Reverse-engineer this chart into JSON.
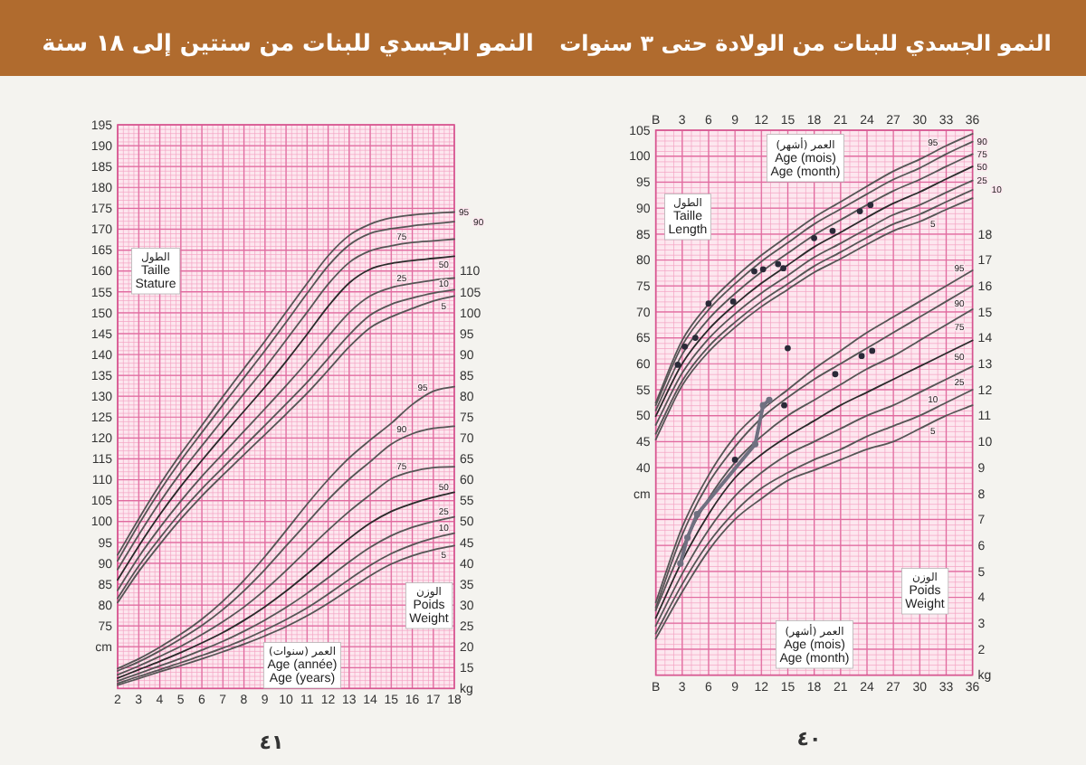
{
  "chart_data": [
    {
      "type": "line",
      "title": "النمو الجسدي للبنات من سنتين إلى ١٨ سنة",
      "xlabel": "العمر (سنوات)\nAge (année)\nAge (years)",
      "ylabel": "الطول\nTaille\nStature",
      "y2label": "الوزن\nPoids\nWeight",
      "x": [
        2,
        3,
        4,
        5,
        6,
        7,
        8,
        9,
        10,
        11,
        12,
        13,
        14,
        15,
        16,
        17,
        18
      ],
      "xlim": [
        2,
        18
      ],
      "xticks": [
        2,
        3,
        4,
        5,
        6,
        7,
        8,
        9,
        10,
        11,
        12,
        13,
        14,
        15,
        16,
        17,
        18
      ],
      "ylim": [
        60,
        195
      ],
      "yticks": [
        {
          "value": 70,
          "label": "cm"
        },
        75,
        80,
        85,
        90,
        95,
        100,
        105,
        110,
        115,
        120,
        125,
        130,
        135,
        140,
        145,
        150,
        155,
        160,
        165,
        170,
        175,
        180,
        185,
        190,
        195
      ],
      "y2lim": [
        10,
        145
      ],
      "y2ticks": [
        {
          "value": 10,
          "label": "kg"
        },
        15,
        20,
        25,
        30,
        35,
        40,
        45,
        50,
        55,
        60,
        65,
        70,
        75,
        80,
        85,
        90,
        95,
        100,
        105,
        110
      ],
      "grid": true,
      "series": [
        {
          "name": "95",
          "color": "#555555",
          "values": [
            92.0,
            100.6,
            108.8,
            116.2,
            123.0,
            129.9,
            136.6,
            143.2,
            150.1,
            157.0,
            163.6,
            168.5,
            171.2,
            172.7,
            173.4,
            173.8,
            174.1
          ]
        },
        {
          "name": "90",
          "color": "#555555",
          "values": [
            90.6,
            99.3,
            107.3,
            114.6,
            121.3,
            127.9,
            134.4,
            140.9,
            147.7,
            154.6,
            161.2,
            166.2,
            169.0,
            170.1,
            170.8,
            171.3,
            171.8
          ]
        },
        {
          "name": "75",
          "color": "#555555",
          "values": [
            88.5,
            96.8,
            104.6,
            111.7,
            118.1,
            124.4,
            130.6,
            136.8,
            143.4,
            150.1,
            156.8,
            162.0,
            164.8,
            166.0,
            166.8,
            167.2,
            167.6
          ]
        },
        {
          "name": "50",
          "color": "#2a2a2a",
          "values": [
            86.0,
            94.1,
            101.6,
            108.4,
            114.6,
            120.6,
            126.4,
            132.2,
            138.3,
            144.8,
            151.5,
            157.1,
            160.4,
            161.8,
            162.5,
            163.0,
            163.5
          ]
        },
        {
          "name": "25",
          "color": "#555555",
          "values": [
            83.5,
            91.5,
            98.5,
            104.9,
            110.8,
            116.2,
            121.6,
            127.0,
            132.5,
            138.2,
            144.3,
            150.0,
            154.0,
            156.0,
            157.0,
            157.8,
            158.3
          ]
        },
        {
          "name": "10",
          "color": "#555555",
          "values": [
            81.6,
            89.3,
            96.0,
            102.2,
            107.8,
            112.9,
            118.0,
            123.0,
            128.1,
            133.3,
            139.0,
            144.7,
            149.4,
            152.0,
            153.5,
            154.7,
            155.5
          ]
        },
        {
          "name": "5",
          "color": "#555555",
          "values": [
            80.6,
            88.0,
            94.5,
            100.6,
            106.1,
            111.1,
            116.0,
            120.8,
            125.7,
            130.7,
            136.2,
            141.8,
            146.4,
            149.0,
            151.0,
            152.8,
            154.0
          ]
        },
        {
          "name": "95",
          "axis": "y2",
          "color": "#555555",
          "values": [
            14.8,
            17.1,
            19.9,
            23.0,
            26.6,
            30.9,
            35.9,
            41.6,
            47.8,
            54.1,
            60.0,
            65.2,
            69.5,
            73.5,
            78.0,
            81.2,
            82.3
          ]
        },
        {
          "name": "90",
          "axis": "y2",
          "color": "#555555",
          "values": [
            14.2,
            16.4,
            19.0,
            21.9,
            25.1,
            28.9,
            33.4,
            38.5,
            44.1,
            49.7,
            55.2,
            60.1,
            64.3,
            68.5,
            71.0,
            72.3,
            72.8
          ]
        },
        {
          "name": "75",
          "axis": "y2",
          "color": "#555555",
          "values": [
            13.3,
            15.4,
            17.7,
            20.1,
            22.9,
            26.0,
            29.5,
            33.6,
            38.2,
            43.1,
            47.9,
            52.4,
            56.4,
            60.2,
            62.0,
            62.9,
            63.1
          ]
        },
        {
          "name": "50",
          "axis": "y2",
          "color": "#2a2a2a",
          "values": [
            12.5,
            14.5,
            16.5,
            18.6,
            20.9,
            23.4,
            26.3,
            29.6,
            33.3,
            37.4,
            41.7,
            45.9,
            49.6,
            52.4,
            54.3,
            55.8,
            57.0
          ]
        },
        {
          "name": "25",
          "axis": "y2",
          "color": "#555555",
          "values": [
            11.8,
            13.6,
            15.4,
            17.2,
            19.2,
            21.3,
            23.7,
            26.4,
            29.4,
            32.8,
            36.5,
            40.3,
            43.8,
            46.6,
            48.6,
            50.0,
            51.1
          ]
        },
        {
          "name": "10",
          "axis": "y2",
          "color": "#555555",
          "values": [
            11.2,
            12.9,
            14.5,
            16.2,
            17.9,
            19.7,
            21.7,
            24.0,
            26.5,
            29.3,
            32.6,
            36.1,
            39.5,
            42.3,
            44.4,
            46.0,
            47.2
          ]
        },
        {
          "name": "5",
          "axis": "y2",
          "color": "#555555",
          "values": [
            10.8,
            12.4,
            14.0,
            15.5,
            17.1,
            18.8,
            20.6,
            22.6,
            24.8,
            27.4,
            30.4,
            33.7,
            37.0,
            39.8,
            41.8,
            43.2,
            44.2
          ]
        }
      ],
      "annotations": [
        "٤١"
      ]
    },
    {
      "type": "line",
      "title": "النمو الجسدي للبنات من الولادة حتى ٣ سنوات",
      "xlabel": "العمر (أشهر)\nAge (mois)\nAge (month)",
      "x2label": "العمر (أشهر)\nAge (mois)\nAge (month)",
      "ylabel": "الطول\nTaille\nLength",
      "y2label": "الوزن\nPoids\nWeight",
      "x": [
        0,
        3,
        6,
        9,
        12,
        15,
        18,
        21,
        24,
        27,
        30,
        33,
        36
      ],
      "xlim": [
        0,
        36
      ],
      "xticks": [
        {
          "value": 0,
          "label": "B"
        },
        3,
        6,
        9,
        12,
        15,
        18,
        21,
        24,
        27,
        30,
        33,
        36
      ],
      "x2lim": [
        0,
        36
      ],
      "x2ticks": [
        {
          "value": 0,
          "label": "B"
        },
        3,
        6,
        9,
        12,
        15,
        18,
        21,
        24,
        27,
        30,
        33,
        36
      ],
      "ylim": [
        0,
        105
      ],
      "yticks": [
        {
          "value": 35,
          "label": "cm"
        },
        40,
        45,
        50,
        55,
        60,
        65,
        70,
        75,
        80,
        85,
        90,
        95,
        100,
        105
      ],
      "y2lim": [
        1,
        22
      ],
      "y2ticks": [
        {
          "value": 1,
          "label": "kg"
        },
        2,
        3,
        4,
        5,
        6,
        7,
        8,
        9,
        10,
        11,
        12,
        13,
        14,
        15,
        16,
        17,
        18
      ],
      "grid": true,
      "series": [
        {
          "name": "95",
          "color": "#555555",
          "values": [
            52.5,
            64.5,
            71.5,
            76.6,
            80.9,
            84.6,
            88.2,
            91.2,
            94.2,
            97.1,
            99.4,
            102.0,
            104.3
          ]
        },
        {
          "name": "90",
          "color": "#555555",
          "values": [
            52.0,
            63.5,
            70.4,
            75.4,
            79.7,
            83.3,
            86.9,
            89.8,
            92.7,
            95.5,
            97.7,
            100.4,
            102.8
          ]
        },
        {
          "name": "75",
          "color": "#555555",
          "values": [
            51.0,
            61.8,
            68.6,
            73.5,
            77.7,
            81.3,
            84.8,
            87.7,
            90.6,
            93.3,
            95.5,
            98.0,
            100.4
          ]
        },
        {
          "name": "50",
          "color": "#2a2a2a",
          "values": [
            49.9,
            60.0,
            66.6,
            71.4,
            75.5,
            79.0,
            82.5,
            85.3,
            88.2,
            90.9,
            93.1,
            95.6,
            98.0
          ]
        },
        {
          "name": "25",
          "color": "#555555",
          "values": [
            48.2,
            58.2,
            64.8,
            69.6,
            73.6,
            77.0,
            80.5,
            83.2,
            86.0,
            88.7,
            90.6,
            93.0,
            95.3
          ]
        },
        {
          "name": "10",
          "color": "#555555",
          "values": [
            46.5,
            56.7,
            63.3,
            68.0,
            72.0,
            75.4,
            78.8,
            81.5,
            84.3,
            86.9,
            88.8,
            91.2,
            93.5
          ]
        },
        {
          "name": "5",
          "color": "#555555",
          "values": [
            45.4,
            55.8,
            62.3,
            67.0,
            71.0,
            74.3,
            77.6,
            80.2,
            83.0,
            85.6,
            87.4,
            89.7,
            91.9
          ]
        },
        {
          "name": "95",
          "axis": "y2",
          "color": "#555555",
          "values": [
            3.8,
            6.7,
            8.7,
            10.2,
            11.2,
            12.0,
            12.8,
            13.5,
            14.2,
            14.8,
            15.4,
            16.0,
            16.6
          ]
        },
        {
          "name": "90",
          "axis": "y2",
          "color": "#555555",
          "values": [
            3.6,
            6.4,
            8.4,
            9.8,
            10.9,
            11.7,
            12.4,
            13.0,
            13.6,
            14.2,
            14.8,
            15.4,
            16.0
          ]
        },
        {
          "name": "75",
          "axis": "y2",
          "color": "#555555",
          "values": [
            3.5,
            5.9,
            7.8,
            9.2,
            10.2,
            11.0,
            11.6,
            12.2,
            12.8,
            13.3,
            13.9,
            14.5,
            15.1
          ]
        },
        {
          "name": "50",
          "axis": "y2",
          "color": "#2a2a2a",
          "values": [
            3.2,
            5.4,
            7.2,
            8.6,
            9.5,
            10.2,
            10.8,
            11.4,
            11.9,
            12.4,
            12.9,
            13.4,
            13.9
          ]
        },
        {
          "name": "25",
          "axis": "y2",
          "color": "#555555",
          "values": [
            2.9,
            4.9,
            6.6,
            7.9,
            8.8,
            9.5,
            10.0,
            10.5,
            11.0,
            11.4,
            11.9,
            12.4,
            12.9
          ]
        },
        {
          "name": "10",
          "axis": "y2",
          "color": "#555555",
          "values": [
            2.6,
            4.5,
            6.1,
            7.3,
            8.2,
            8.8,
            9.3,
            9.7,
            10.2,
            10.6,
            11.0,
            11.5,
            12.0
          ]
        },
        {
          "name": "5",
          "axis": "y2",
          "color": "#555555",
          "values": [
            2.4,
            4.2,
            5.8,
            7.0,
            7.8,
            8.5,
            8.9,
            9.3,
            9.7,
            10.0,
            10.5,
            11.0,
            11.4
          ]
        },
        {
          "type": "scatter",
          "color": "#2a2a38",
          "marker": "circle",
          "x": [
            2.5,
            3.3,
            4.5,
            6.0,
            8.8,
            11.2,
            12.2,
            13.9,
            14.5,
            18.0,
            20.1,
            23.2,
            24.4
          ],
          "values": [
            59.8,
            63.3,
            65.0,
            71.6,
            72.0,
            77.8,
            78.2,
            79.2,
            78.4,
            84.2,
            85.6,
            89.4,
            90.6
          ]
        },
        {
          "type": "scatter",
          "axis": "y2",
          "color": "#2a2a38",
          "marker": "circle",
          "x": [
            9.0,
            14.6,
            15.0,
            20.4,
            23.4,
            24.6
          ],
          "values": [
            9.3,
            11.4,
            13.6,
            12.6,
            13.3,
            13.5
          ]
        },
        {
          "type": "line",
          "axis": "y2",
          "color": "#6f7080",
          "marker": "circle",
          "x": [
            2.8,
            3.6,
            4.7,
            11.3,
            12.2,
            12.9
          ],
          "values": [
            5.3,
            6.3,
            7.2,
            9.9,
            11.4,
            11.6
          ]
        }
      ],
      "annotations": [
        "٤٠"
      ]
    }
  ]
}
